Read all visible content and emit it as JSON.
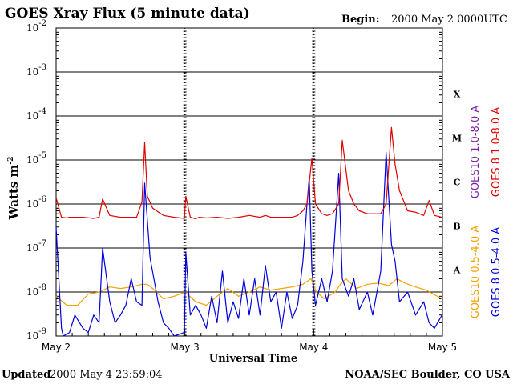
{
  "header": {
    "title": "GOES Xray Flux (5 minute data)",
    "begin_label": "Begin:",
    "begin_value": "2000 May 2 0000UTC"
  },
  "footer": {
    "updated_label": "Updated",
    "updated_value": "2000 May  4 23:59:04",
    "source": "NOAA/SEC Boulder, CO USA"
  },
  "colors": {
    "goes10_long": "#7b1fa2",
    "goes8_long": "#e00000",
    "goes10_short": "#f5a000",
    "goes8_short": "#0000e0"
  },
  "chart_data": {
    "type": "line",
    "title": "GOES Xray Flux (5 minute data)",
    "xlabel": "Universal Time",
    "ylabel": "Watts m",
    "ylabel_sup": "-2",
    "yscale": "log",
    "ylim": [
      1e-09,
      0.01
    ],
    "xlim": [
      "2000-05-02 00:00",
      "2000-05-05 00:00"
    ],
    "x_ticks": [
      "May 2",
      "May 3",
      "May 4",
      "May 5"
    ],
    "y_ticks": [
      {
        "base": "10",
        "exp": "-9",
        "value": 1e-09
      },
      {
        "base": "10",
        "exp": "-8",
        "value": 1e-08
      },
      {
        "base": "10",
        "exp": "-7",
        "value": 1e-07
      },
      {
        "base": "10",
        "exp": "-6",
        "value": 1e-06
      },
      {
        "base": "10",
        "exp": "-5",
        "value": 1e-05
      },
      {
        "base": "10",
        "exp": "-4",
        "value": 0.0001
      },
      {
        "base": "10",
        "exp": "-3",
        "value": 0.001
      },
      {
        "base": "10",
        "exp": "-2",
        "value": 0.01
      }
    ],
    "flare_classes": [
      {
        "label": "A",
        "value": 1e-08
      },
      {
        "label": "B",
        "value": 1e-07
      },
      {
        "label": "C",
        "value": 1e-06
      },
      {
        "label": "M",
        "value": 1e-05
      },
      {
        "label": "X",
        "value": 0.0001
      }
    ],
    "grid": true,
    "legend_placement": "right",
    "series": [
      {
        "name": "GOES10 1.0-8.0 A",
        "color": "#7b1fa2",
        "x": [
          "2000-05-02 00:00",
          "2000-05-04 23:55"
        ],
        "y": [
          5e-07,
          5e-07
        ]
      },
      {
        "name": "GOES 8 1.0-8.0 A",
        "color": "#e00000",
        "x": [
          "2000-05-02 00:00",
          "2000-05-02 01:00",
          "2000-05-02 02:00",
          "2000-05-02 02:30",
          "2000-05-02 03:30",
          "2000-05-02 05:00",
          "2000-05-02 07:00",
          "2000-05-02 08:00",
          "2000-05-02 08:40",
          "2000-05-02 10:00",
          "2000-05-02 12:00",
          "2000-05-02 14:00",
          "2000-05-02 15:00",
          "2000-05-02 16:00",
          "2000-05-02 16:30",
          "2000-05-02 17:00",
          "2000-05-02 18:00",
          "2000-05-02 20:00",
          "2000-05-02 22:00",
          "2000-05-02 23:55",
          "2000-05-03 00:10",
          "2000-05-03 01:00",
          "2000-05-03 02:00",
          "2000-05-03 02:40",
          "2000-05-03 04:00",
          "2000-05-03 06:00",
          "2000-05-03 08:00",
          "2000-05-03 10:00",
          "2000-05-03 12:00",
          "2000-05-03 14:00",
          "2000-05-03 15:00",
          "2000-05-03 16:00",
          "2000-05-03 18:00",
          "2000-05-03 20:00",
          "2000-05-03 21:00",
          "2000-05-03 22:00",
          "2000-05-03 22:45",
          "2000-05-03 23:10",
          "2000-05-03 23:40",
          "2000-05-04 00:20",
          "2000-05-04 01:30",
          "2000-05-04 02:30",
          "2000-05-04 03:30",
          "2000-05-04 04:40",
          "2000-05-04 05:20",
          "2000-05-04 06:30",
          "2000-05-04 07:30",
          "2000-05-04 08:30",
          "2000-05-04 10:00",
          "2000-05-04 11:00",
          "2000-05-04 12:30",
          "2000-05-04 13:30",
          "2000-05-04 14:30",
          "2000-05-04 15:10",
          "2000-05-04 16:00",
          "2000-05-04 17:30",
          "2000-05-04 19:00",
          "2000-05-04 20:30",
          "2000-05-04 21:30",
          "2000-05-04 22:30",
          "2000-05-04 23:55"
        ],
        "y": [
          1.4e-06,
          5e-07,
          4.8e-07,
          5e-07,
          5e-07,
          5e-07,
          4.7e-07,
          5e-07,
          1.3e-06,
          5.5e-07,
          5e-07,
          5e-07,
          5e-07,
          1.1e-06,
          2.5e-05,
          1.5e-06,
          8e-07,
          5.5e-07,
          5e-07,
          4.7e-07,
          1.5e-06,
          5e-07,
          4.6e-07,
          5e-07,
          4.8e-07,
          5e-07,
          4.7e-07,
          5e-07,
          5.5e-07,
          5e-07,
          5.5e-07,
          5e-07,
          5e-07,
          5e-07,
          5.5e-07,
          7e-07,
          1e-06,
          3e-06,
          1.1e-05,
          1e-06,
          6e-07,
          5.5e-07,
          6e-07,
          1e-06,
          2.8e-05,
          2e-06,
          1e-06,
          7e-07,
          6e-07,
          6e-07,
          6e-07,
          1e-06,
          5.5e-05,
          8e-06,
          2e-06,
          7e-07,
          6.5e-07,
          5.5e-07,
          1.2e-06,
          5.5e-07,
          5e-07
        ]
      },
      {
        "name": "GOES10 0.5-4.0 A",
        "color": "#f5a000",
        "x": [
          "2000-05-02 00:00",
          "2000-05-02 02:00",
          "2000-05-02 04:00",
          "2000-05-02 06:00",
          "2000-05-02 08:00",
          "2000-05-02 10:00",
          "2000-05-02 12:00",
          "2000-05-02 14:00",
          "2000-05-02 16:00",
          "2000-05-02 17:00",
          "2000-05-02 18:00",
          "2000-05-02 20:00",
          "2000-05-02 22:00",
          "2000-05-03 00:00",
          "2000-05-03 02:00",
          "2000-05-03 04:00",
          "2000-05-03 06:00",
          "2000-05-03 08:00",
          "2000-05-03 10:00",
          "2000-05-03 12:00",
          "2000-05-03 14:00",
          "2000-05-03 16:00",
          "2000-05-03 18:00",
          "2000-05-03 20:00",
          "2000-05-03 22:00",
          "2000-05-03 23:30",
          "2000-05-04 00:30",
          "2000-05-04 02:00",
          "2000-05-04 04:00",
          "2000-05-04 05:00",
          "2000-05-04 06:00",
          "2000-05-04 08:00",
          "2000-05-04 10:00",
          "2000-05-04 12:00",
          "2000-05-04 14:00",
          "2000-05-04 15:30",
          "2000-05-04 17:00",
          "2000-05-04 19:00",
          "2000-05-04 21:00",
          "2000-05-04 23:55"
        ],
        "y": [
          8e-09,
          5e-09,
          5e-09,
          9e-09,
          1e-08,
          1.3e-08,
          1.2e-08,
          1.3e-08,
          1.5e-08,
          1.5e-08,
          1.2e-08,
          7e-09,
          8e-09,
          1e-08,
          6e-09,
          5e-09,
          8e-09,
          1.2e-08,
          8e-09,
          1e-08,
          1.3e-08,
          1.1e-08,
          1.2e-08,
          1.3e-08,
          1.5e-08,
          2e-08,
          1e-08,
          7e-09,
          1e-08,
          1.5e-08,
          2e-08,
          1.2e-08,
          1.5e-08,
          1.6e-08,
          1.4e-08,
          2e-08,
          1.6e-08,
          1.3e-08,
          1.1e-08,
          7e-09
        ]
      },
      {
        "name": "GOES 8 0.5-4.0 A",
        "color": "#0000e0",
        "x": [
          "2000-05-02 00:00",
          "2000-05-02 01:00",
          "2000-05-02 01:20",
          "2000-05-02 02:30",
          "2000-05-02 03:30",
          "2000-05-02 05:00",
          "2000-05-02 06:00",
          "2000-05-02 07:00",
          "2000-05-02 08:00",
          "2000-05-02 08:40",
          "2000-05-02 10:00",
          "2000-05-02 11:00",
          "2000-05-02 12:00",
          "2000-05-02 13:00",
          "2000-05-02 14:00",
          "2000-05-02 15:00",
          "2000-05-02 16:00",
          "2000-05-02 16:30",
          "2000-05-02 17:30",
          "2000-05-02 19:00",
          "2000-05-02 20:00",
          "2000-05-02 21:00",
          "2000-05-02 22:00",
          "2000-05-02 23:55",
          "2000-05-03 00:10",
          "2000-05-03 01:00",
          "2000-05-03 02:00",
          "2000-05-03 03:00",
          "2000-05-03 04:00",
          "2000-05-03 05:00",
          "2000-05-03 06:00",
          "2000-05-03 07:00",
          "2000-05-03 08:00",
          "2000-05-03 09:00",
          "2000-05-03 10:00",
          "2000-05-03 11:00",
          "2000-05-03 12:00",
          "2000-05-03 13:00",
          "2000-05-03 14:00",
          "2000-05-03 15:00",
          "2000-05-03 16:00",
          "2000-05-03 17:00",
          "2000-05-03 18:00",
          "2000-05-03 19:00",
          "2000-05-03 20:00",
          "2000-05-03 21:00",
          "2000-05-03 22:00",
          "2000-05-03 22:45",
          "2000-05-03 23:10",
          "2000-05-03 23:40",
          "2000-05-04 00:20",
          "2000-05-04 01:30",
          "2000-05-04 02:30",
          "2000-05-04 03:30",
          "2000-05-04 04:40",
          "2000-05-04 05:20",
          "2000-05-04 06:30",
          "2000-05-04 07:30",
          "2000-05-04 08:30",
          "2000-05-04 10:00",
          "2000-05-04 11:00",
          "2000-05-04 12:30",
          "2000-05-04 13:30",
          "2000-05-04 14:30",
          "2000-05-04 15:10",
          "2000-05-04 16:00",
          "2000-05-04 17:30",
          "2000-05-04 19:00",
          "2000-05-04 20:30",
          "2000-05-04 21:30",
          "2000-05-04 22:30",
          "2000-05-04 23:55"
        ],
        "y": [
          3e-07,
          1.5e-09,
          1e-09,
          1.2e-09,
          3e-09,
          1.5e-09,
          1.2e-09,
          3e-09,
          2e-09,
          1e-07,
          6e-09,
          2e-09,
          3e-09,
          5e-09,
          2e-08,
          6e-09,
          5e-09,
          3e-06,
          6e-08,
          6e-09,
          2e-09,
          1.5e-09,
          1e-09,
          1.2e-09,
          8e-08,
          3e-09,
          5e-09,
          3e-09,
          1.5e-09,
          8e-09,
          2e-09,
          3e-08,
          2e-09,
          6e-09,
          2.5e-09,
          2e-08,
          3e-09,
          2e-08,
          3e-09,
          4e-08,
          6e-09,
          1e-08,
          1.5e-09,
          1e-08,
          2.5e-09,
          5e-09,
          5e-08,
          1e-06,
          4e-06,
          3e-08,
          5e-09,
          2e-08,
          6e-09,
          3e-08,
          5e-06,
          2e-08,
          8e-09,
          2e-08,
          4e-09,
          1e-08,
          3e-09,
          3e-08,
          1.5e-05,
          1.2e-07,
          5e-08,
          6e-09,
          1e-08,
          3e-09,
          6e-09,
          2e-09,
          1.5e-09,
          3e-09
        ]
      }
    ]
  }
}
